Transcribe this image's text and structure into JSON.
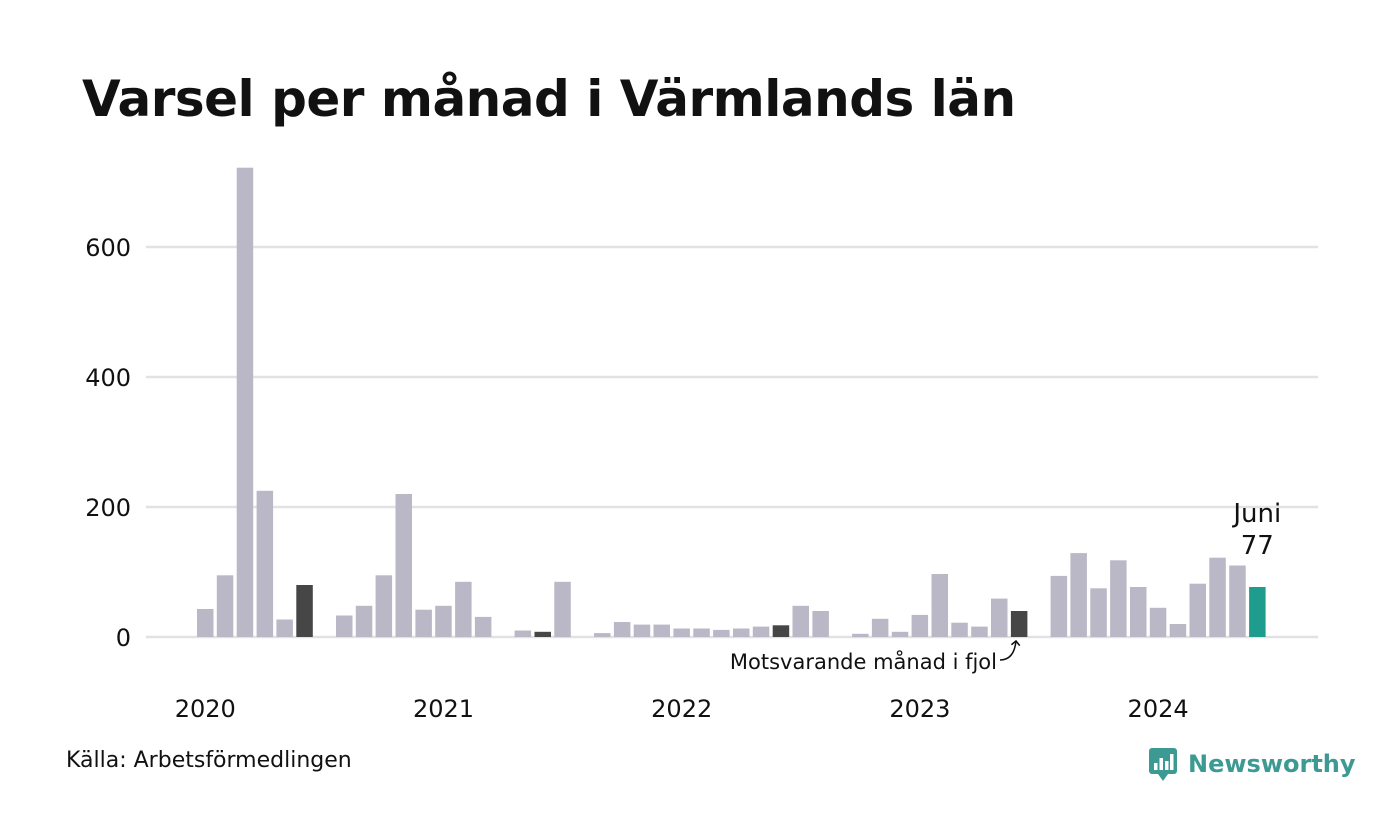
{
  "title": "Varsel per månad i Värmlands län",
  "source": "Källa: Arbetsförmedlingen",
  "brand": "Newsworthy",
  "colors": {
    "default": "#bab8c6",
    "same_month": "#464646",
    "current": "#1e9c8e",
    "grid": "#e2e2e6",
    "brand": "#3c9a93"
  },
  "chart_data": {
    "type": "bar",
    "title": "Varsel per månad i Värmlands län",
    "xlabel": "",
    "ylabel": "",
    "ylim": [
      0,
      720
    ],
    "y_ticks": [
      0,
      200,
      400,
      600
    ],
    "grid": true,
    "x_labels": [
      {
        "label": "2020",
        "month_index": 0
      },
      {
        "label": "2021",
        "month_index": 12
      },
      {
        "label": "2022",
        "month_index": 24
      },
      {
        "label": "2023",
        "month_index": 36
      },
      {
        "label": "2024",
        "month_index": 48
      }
    ],
    "months": [
      "2020-01",
      "2020-02",
      "2020-03",
      "2020-04",
      "2020-05",
      "2020-06",
      "2020-07",
      "2020-08",
      "2020-09",
      "2020-10",
      "2020-11",
      "2020-12",
      "2021-01",
      "2021-02",
      "2021-03",
      "2021-04",
      "2021-05",
      "2021-06",
      "2021-07",
      "2021-08",
      "2021-09",
      "2021-10",
      "2021-11",
      "2021-12",
      "2022-01",
      "2022-02",
      "2022-03",
      "2022-04",
      "2022-05",
      "2022-06",
      "2022-07",
      "2022-08",
      "2022-09",
      "2022-10",
      "2022-11",
      "2022-12",
      "2023-01",
      "2023-02",
      "2023-03",
      "2023-04",
      "2023-05",
      "2023-06",
      "2023-07",
      "2023-08",
      "2023-09",
      "2023-10",
      "2023-11",
      "2023-12",
      "2024-01",
      "2024-02",
      "2024-03",
      "2024-04",
      "2024-05",
      "2024-06"
    ],
    "values": [
      43,
      95,
      722,
      225,
      27,
      80,
      0,
      33,
      48,
      95,
      220,
      42,
      48,
      85,
      31,
      0,
      10,
      8,
      85,
      0,
      6,
      23,
      19,
      19,
      13,
      13,
      11,
      13,
      16,
      18,
      48,
      40,
      0,
      5,
      28,
      8,
      34,
      97,
      22,
      16,
      59,
      40,
      0,
      94,
      129,
      75,
      118,
      77,
      45,
      20,
      82,
      122,
      110,
      77
    ],
    "highlight_same_month_indices": [
      5,
      17,
      29,
      41
    ],
    "highlight_current_index": 53,
    "current_label": {
      "month": "Juni",
      "value": "77"
    },
    "annotation": "Motsvarande månad i fjol"
  }
}
